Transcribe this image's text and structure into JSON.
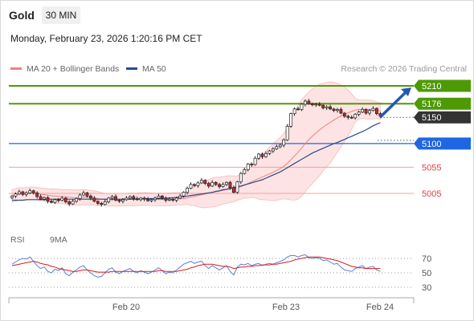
{
  "header": {
    "symbol": "Gold",
    "timeframe": "30 MIN",
    "datetime": "Monday, February 23, 2026 1:20:16 PM CET"
  },
  "legend": {
    "bb_label": "MA 20 + Bollinger Bands",
    "ma50_label": "MA 50",
    "credit": "Research © 2026 Trading Central"
  },
  "rsi_legend": {
    "rsi_label": "RSI",
    "ma9_label": "9MA"
  },
  "colors": {
    "resistance": "#4e9a06",
    "support": "#1f66e5",
    "current": "#333333",
    "weak_level": "#e04040",
    "bollinger_fill": "#fde3e3",
    "ma20": "#f08080",
    "ma50": "#2a4a8a",
    "up_candle": "#ffffff",
    "down_candle": "#c62828",
    "arrow": "#2457b5",
    "rsi": "#5b7fd6",
    "rsi_ma": "#d81b1b"
  },
  "chart_data": [
    {
      "type": "candlestick",
      "title": "Gold",
      "timeframe": "30 MIN",
      "ylim": [
        4960,
        5240
      ],
      "x_ticks": [
        "Feb 20",
        "Feb 23",
        "Feb 24"
      ],
      "levels": [
        {
          "value": 5210,
          "label": "5210",
          "kind": "resistance"
        },
        {
          "value": 5176,
          "label": "5176",
          "kind": "resistance"
        },
        {
          "value": 5150,
          "label": "5150",
          "kind": "current"
        },
        {
          "value": 5100,
          "label": "5100",
          "kind": "support"
        },
        {
          "value": 5055,
          "label": "5055",
          "kind": "weak"
        },
        {
          "value": 5005,
          "label": "5005",
          "kind": "weak"
        }
      ],
      "close": [
        5000,
        5004,
        5008,
        5003,
        5006,
        5010,
        5006,
        4999,
        4994,
        4997,
        4990,
        4988,
        4993,
        4992,
        4996,
        4989,
        4985,
        4990,
        4995,
        5002,
        5006,
        5000,
        4996,
        4990,
        4986,
        4984,
        4989,
        4996,
        4999,
        4992,
        4990,
        4993,
        4996,
        4999,
        4995,
        4993,
        4996,
        4994,
        4991,
        4993,
        4996,
        5000,
        4996,
        4992,
        4994,
        4992,
        4996,
        5000,
        5007,
        5015,
        5022,
        5020,
        5025,
        5030,
        5024,
        5019,
        5026,
        5022,
        5018,
        5022,
        5026,
        5016,
        5007,
        5027,
        5043,
        5050,
        5061,
        5060,
        5072,
        5080,
        5075,
        5081,
        5086,
        5090,
        5094,
        5097,
        5107,
        5133,
        5157,
        5166,
        5165,
        5175,
        5181,
        5176,
        5174,
        5175,
        5173,
        5168,
        5170,
        5166,
        5163,
        5165,
        5158,
        5152,
        5150,
        5149,
        5156,
        5160,
        5165,
        5158,
        5163,
        5167,
        5157,
        5153
      ],
      "ma50": [
        4992,
        4992,
        4992,
        4992,
        4993,
        4993,
        4993,
        4993,
        4993,
        4993,
        4994,
        4994,
        4994,
        4994,
        4994,
        4994,
        4994,
        4994,
        4994,
        4994,
        4994,
        4994,
        4994,
        4994,
        4994,
        4994,
        4994,
        4994,
        4994,
        4994,
        4994,
        4994,
        4994,
        4994,
        4994,
        4994,
        4995,
        4995,
        4995,
        4995,
        4995,
        4995,
        4995,
        4996,
        4996,
        4997,
        4997,
        4998,
        4999,
        5000,
        5001,
        5002,
        5003,
        5004,
        5005,
        5006,
        5007,
        5009,
        5010,
        5012,
        5013,
        5015,
        5016,
        5018,
        5019,
        5021,
        5023,
        5025,
        5027,
        5029,
        5031,
        5034,
        5037,
        5040,
        5043,
        5046,
        5050,
        5054,
        5058,
        5062,
        5066,
        5070,
        5074,
        5078,
        5082,
        5085,
        5088,
        5091,
        5094,
        5097,
        5100,
        5102,
        5105,
        5108,
        5111,
        5114,
        5117,
        5120,
        5123,
        5126,
        5130,
        5134,
        5137,
        5140
      ],
      "rsi_panel": {
        "ticks": [
          70,
          50,
          30
        ],
        "ylim": [
          20,
          80
        ],
        "rsi": [
          62,
          65,
          68,
          70,
          69,
          72,
          66,
          60,
          56,
          58,
          52,
          50,
          55,
          53,
          57,
          49,
          46,
          51,
          54,
          58,
          60,
          54,
          50,
          46,
          44,
          45,
          50,
          55,
          57,
          51,
          49,
          52,
          54,
          56,
          52,
          50,
          53,
          51,
          49,
          51,
          54,
          57,
          53,
          49,
          51,
          50,
          54,
          58,
          62,
          64,
          66,
          63,
          65,
          66,
          60,
          56,
          60,
          57,
          54,
          57,
          60,
          52,
          47,
          58,
          62,
          61,
          63,
          60,
          62,
          63,
          60,
          62,
          63,
          62,
          64,
          66,
          68,
          72,
          74,
          74,
          72,
          74,
          75,
          71,
          70,
          71,
          70,
          67,
          68,
          65,
          62,
          63,
          58,
          54,
          53,
          52,
          56,
          58,
          60,
          56,
          58,
          59,
          54,
          52
        ],
        "ma9": [
          60,
          61,
          62,
          63,
          64,
          65,
          66,
          65,
          63,
          62,
          61,
          59,
          58,
          56,
          55,
          54,
          53,
          52,
          52,
          53,
          54,
          54,
          53,
          52,
          51,
          51,
          51,
          51,
          52,
          52,
          52,
          52,
          52,
          52,
          52,
          52,
          52,
          52,
          52,
          52,
          52,
          53,
          53,
          52,
          52,
          52,
          52,
          53,
          54,
          55,
          57,
          58,
          60,
          61,
          62,
          62,
          62,
          61,
          60,
          59,
          59,
          58,
          56,
          57,
          58,
          58,
          59,
          59,
          60,
          60,
          61,
          61,
          61,
          62,
          62,
          63,
          64,
          65,
          66,
          68,
          69,
          70,
          71,
          72,
          72,
          72,
          72,
          71,
          70,
          69,
          68,
          67,
          65,
          63,
          61,
          59,
          58,
          57,
          57,
          56,
          56,
          56,
          56,
          56
        ]
      }
    }
  ]
}
